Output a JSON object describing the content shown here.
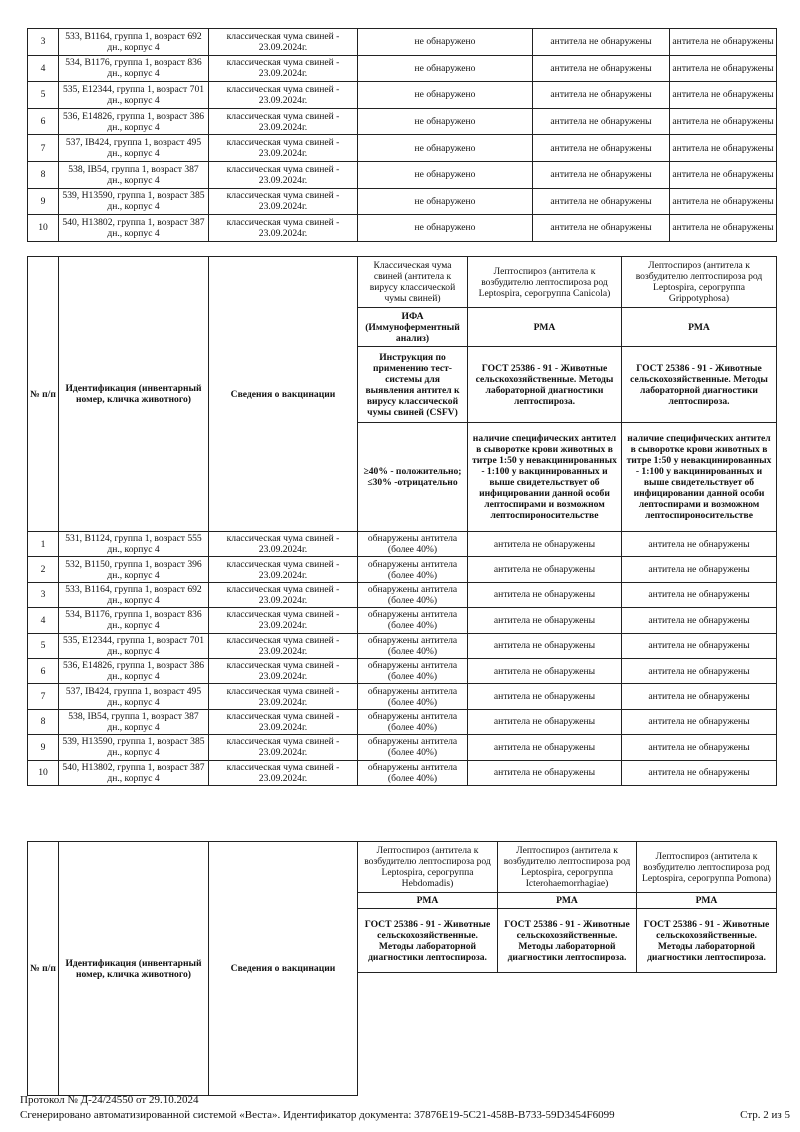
{
  "table1": {
    "rows": [
      {
        "no": "3",
        "id": "533, B1164, группа 1, возраст 692 дн., корпус 4",
        "vacc": "классическая чума свиней - 23.09.2024г.",
        "c1": "не обнаружено",
        "c2": "антитела не обнаружены",
        "c3": "антитела не обнаружены"
      },
      {
        "no": "4",
        "id": "534, B1176, группа 1, возраст 836 дн., корпус 4",
        "vacc": "классическая чума свиней - 23.09.2024г.",
        "c1": "не обнаружено",
        "c2": "антитела не обнаружены",
        "c3": "антитела не обнаружены"
      },
      {
        "no": "5",
        "id": "535, E12344, группа 1, возраст 701 дн., корпус 4",
        "vacc": "классическая чума свиней - 23.09.2024г.",
        "c1": "не обнаружено",
        "c2": "антитела не обнаружены",
        "c3": "антитела не обнаружены"
      },
      {
        "no": "6",
        "id": "536, E14826, группа 1, возраст 386 дн., корпус 4",
        "vacc": "классическая чума свиней - 23.09.2024г.",
        "c1": "не обнаружено",
        "c2": "антитела не обнаружены",
        "c3": "антитела не обнаружены"
      },
      {
        "no": "7",
        "id": "537, IB424, группа 1, возраст 495 дн., корпус 4",
        "vacc": "классическая чума свиней - 23.09.2024г.",
        "c1": "не обнаружено",
        "c2": "антитела не обнаружены",
        "c3": "антитела не обнаружены"
      },
      {
        "no": "8",
        "id": "538, IB54, группа 1, возраст 387 дн., корпус 4",
        "vacc": "классическая чума свиней - 23.09.2024г.",
        "c1": "не обнаружено",
        "c2": "антитела не обнаружены",
        "c3": "антитела не обнаружены"
      },
      {
        "no": "9",
        "id": "539, H13590, группа 1, возраст 385 дн., корпус 4",
        "vacc": "классическая чума свиней - 23.09.2024г.",
        "c1": "не обнаружено",
        "c2": "антитела не обнаружены",
        "c3": "антитела не обнаружены"
      },
      {
        "no": "10",
        "id": "540, H13802, группа 1, возраст 387 дн., корпус 4",
        "vacc": "классическая чума свиней - 23.09.2024г.",
        "c1": "не обнаружено",
        "c2": "антитела не обнаружены",
        "c3": "антитела не обнаружены"
      }
    ]
  },
  "table2": {
    "header": {
      "no": "№ п/п",
      "id": "Идентификация (инвентарный номер, кличка животного)",
      "vacc": "Сведения о вакцинации",
      "cols": [
        {
          "title": "Классическая чума свиней (антитела к вирусу классической чумы свиней)",
          "method": "ИФА (Иммуноферментный анализ)",
          "norm": "Инструкция по применению тест-системы для выявления антител к вирусу классической чумы свиней (CSFV)",
          "ref": "≥40% - положительно; ≤30% -отрицательно"
        },
        {
          "title": "Лептоспироз (антитела к возбудителю лептоспироза род Leptospira, серогруппа Canicola)",
          "method": "РМА",
          "norm": "ГОСТ 25386 - 91 - Животные сельскохозяйственные. Методы лабораторной диагностики лептоспироза.",
          "ref": "наличие специфических антител в сыворотке крови животных в титре 1:50 у невакцинированных - 1:100 у вакцинированных и выше свидетельствует об инфицировании данной особи лептоспирами и возможном лептоспироносительстве"
        },
        {
          "title": "Лептоспироз (антитела к возбудителю лептоспироза род Leptospira, серогруппа Grippotyphosa)",
          "method": "РМА",
          "norm": "ГОСТ 25386 - 91 - Животные сельскохозяйственные. Методы лабораторной диагностики лептоспироза.",
          "ref": "наличие специфических антител в сыворотке крови животных в титре 1:50 у невакцинированных - 1:100 у вакцинированных и выше свидетельствует об инфицировании данной особи лептоспирами и возможном лептоспироносительстве"
        }
      ]
    },
    "rows": [
      {
        "no": "1",
        "id": "531, B1124, группа 1, возраст 555 дн., корпус 4",
        "vacc": "классическая чума свиней - 23.09.2024г.",
        "c1": "обнаружены антитела (более 40%)",
        "c2": "антитела не обнаружены",
        "c3": "антитела не обнаружены"
      },
      {
        "no": "2",
        "id": "532, B1150, группа 1, возраст 396 дн., корпус 4",
        "vacc": "классическая чума свиней - 23.09.2024г.",
        "c1": "обнаружены антитела (более 40%)",
        "c2": "антитела не обнаружены",
        "c3": "антитела не обнаружены"
      },
      {
        "no": "3",
        "id": "533, B1164, группа 1, возраст 692 дн., корпус 4",
        "vacc": "классическая чума свиней - 23.09.2024г.",
        "c1": "обнаружены антитела (более 40%)",
        "c2": "антитела не обнаружены",
        "c3": "антитела не обнаружены"
      },
      {
        "no": "4",
        "id": "534, B1176, группа 1, возраст 836 дн., корпус 4",
        "vacc": "классическая чума свиней - 23.09.2024г.",
        "c1": "обнаружены антитела (более 40%)",
        "c2": "антитела не обнаружены",
        "c3": "антитела не обнаружены"
      },
      {
        "no": "5",
        "id": "535, E12344, группа 1, возраст 701 дн., корпус 4",
        "vacc": "классическая чума свиней - 23.09.2024г.",
        "c1": "обнаружены антитела (более 40%)",
        "c2": "антитела не обнаружены",
        "c3": "антитела не обнаружены"
      },
      {
        "no": "6",
        "id": "536, E14826, группа 1, возраст 386 дн., корпус 4",
        "vacc": "классическая чума свиней - 23.09.2024г.",
        "c1": "обнаружены антитела (более 40%)",
        "c2": "антитела не обнаружены",
        "c3": "антитела не обнаружены"
      },
      {
        "no": "7",
        "id": "537, IB424, группа 1, возраст 495 дн., корпус 4",
        "vacc": "классическая чума свиней - 23.09.2024г.",
        "c1": "обнаружены антитела (более 40%)",
        "c2": "антитела не обнаружены",
        "c3": "антитела не обнаружены"
      },
      {
        "no": "8",
        "id": "538, IB54, группа 1, возраст 387 дн., корпус 4",
        "vacc": "классическая чума свиней - 23.09.2024г.",
        "c1": "обнаружены антитела (более 40%)",
        "c2": "антитела не обнаружены",
        "c3": "антитела не обнаружены"
      },
      {
        "no": "9",
        "id": "539, H13590, группа 1, возраст 385 дн., корпус 4",
        "vacc": "классическая чума свиней - 23.09.2024г.",
        "c1": "обнаружены антитела (более 40%)",
        "c2": "антитела не обнаружены",
        "c3": "антитела не обнаружены"
      },
      {
        "no": "10",
        "id": "540, H13802, группа 1, возраст 387 дн., корпус 4",
        "vacc": "классическая чума свиней - 23.09.2024г.",
        "c1": "обнаружены антитела (более 40%)",
        "c2": "антитела не обнаружены",
        "c3": "антитела не обнаружены"
      }
    ]
  },
  "table3": {
    "header": {
      "no": "№ п/п",
      "id": "Идентификация (инвентарный номер, кличка животного)",
      "vacc": "Сведения о вакцинации",
      "cols": [
        {
          "title": "Лептоспироз (антитела к возбудителю лептоспироза род Leptospira, серогруппа Hebdomadis)",
          "method": "РМА",
          "norm": "ГОСТ 25386 - 91 - Животные сельскохозяйственные. Методы лабораторной диагностики лептоспироза."
        },
        {
          "title": "Лептоспироз (антитела к возбудителю лептоспироза род Leptospira, серогруппа Icterohaemorrhagiae)",
          "method": "РМА",
          "norm": "ГОСТ 25386 - 91 - Животные сельскохозяйственные. Методы лабораторной диагностики лептоспироза."
        },
        {
          "title": "Лептоспироз (антитела к возбудителю лептоспироза род Leptospira, серогруппа Pomona)",
          "method": "РМА",
          "norm": "ГОСТ 25386 - 91 - Животные сельскохозяйственные. Методы лабораторной диагностики лептоспироза."
        }
      ]
    }
  },
  "footer": {
    "protocol": "Протокол № Д-24/24550 от 29.10.2024",
    "generated": "Сгенерировано автоматизированной системой «Веста». Идентификатор документа: 37876E19-5C21-458B-B733-59D3454F6099",
    "page": "Стр. 2 из 5"
  }
}
